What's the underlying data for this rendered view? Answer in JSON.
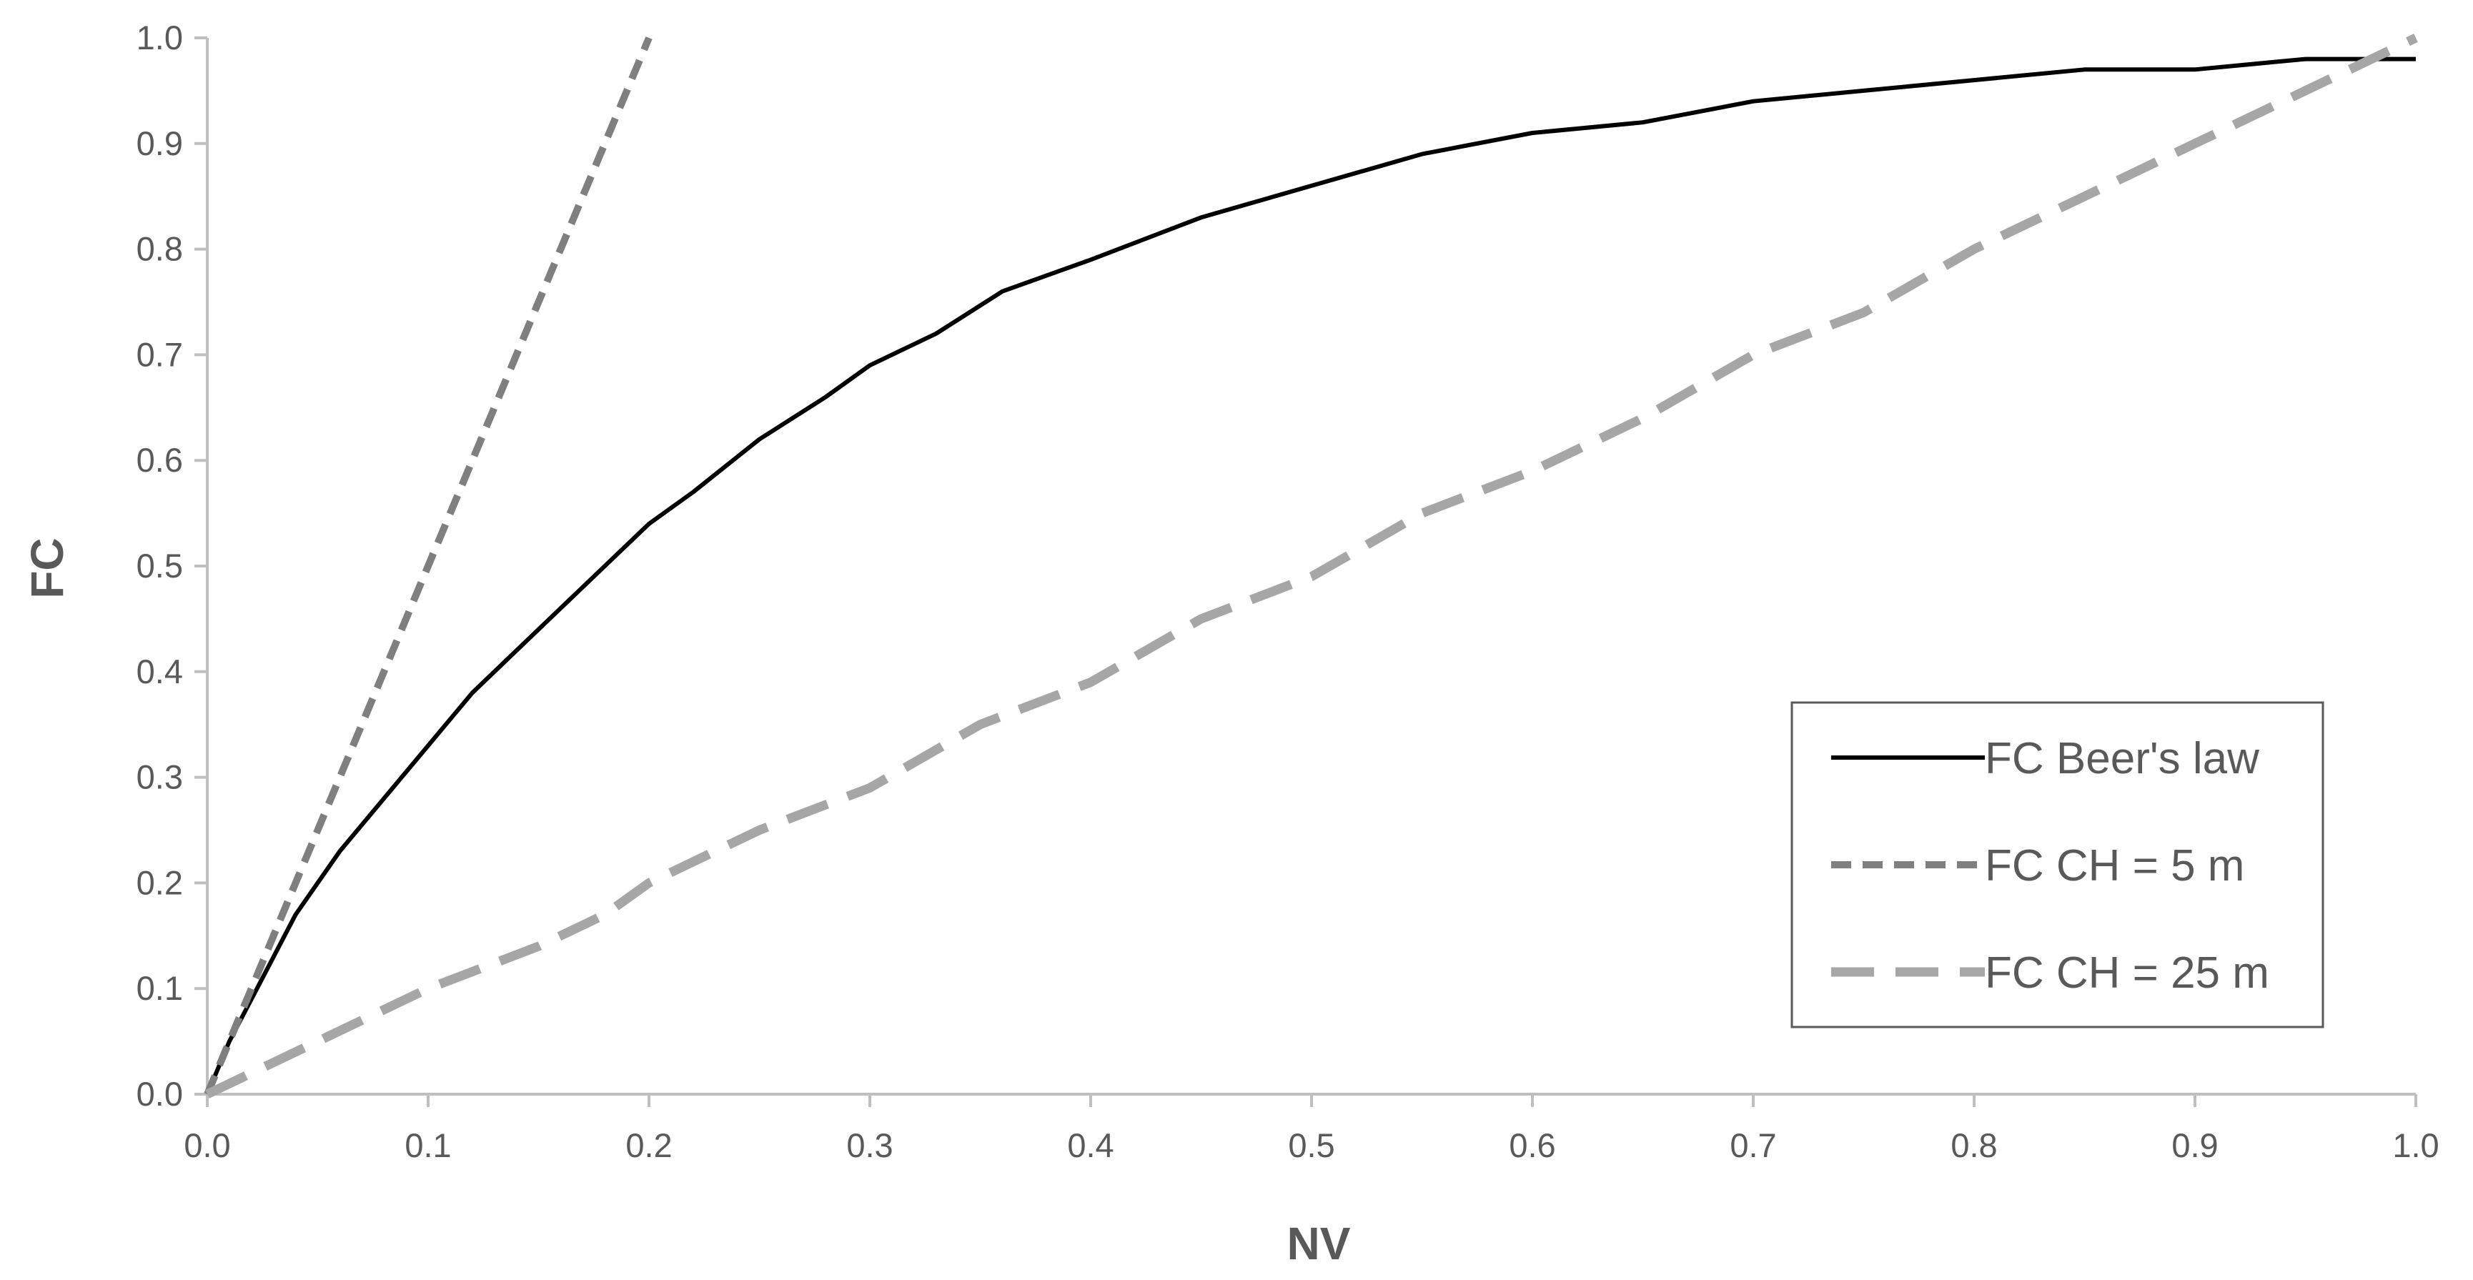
{
  "chart_data": {
    "type": "line",
    "xlabel": "NV",
    "ylabel": "FC",
    "xlim": [
      0.0,
      1.0
    ],
    "ylim": [
      0.0,
      1.0
    ],
    "x_ticks": [
      "0.0",
      "0.1",
      "0.2",
      "0.3",
      "0.4",
      "0.5",
      "0.6",
      "0.7",
      "0.8",
      "0.9",
      "1.0"
    ],
    "y_ticks": [
      "0.0",
      "0.1",
      "0.2",
      "0.3",
      "0.4",
      "0.5",
      "0.6",
      "0.7",
      "0.8",
      "0.9",
      "1.0"
    ],
    "grid": false,
    "legend_position": "bottom-right",
    "axis_color": "#bfbfbf",
    "series": [
      {
        "name": "FC Beer's law",
        "color": "#000000",
        "style": "solid",
        "x": [
          0.0,
          0.01,
          0.02,
          0.03,
          0.04,
          0.05,
          0.06,
          0.08,
          0.1,
          0.12,
          0.14,
          0.16,
          0.18,
          0.2,
          0.22,
          0.25,
          0.28,
          0.3,
          0.33,
          0.36,
          0.4,
          0.45,
          0.5,
          0.55,
          0.6,
          0.65,
          0.7,
          0.75,
          0.8,
          0.85,
          0.9,
          0.95,
          1.0
        ],
        "y": [
          0.0,
          0.05,
          0.09,
          0.13,
          0.17,
          0.2,
          0.23,
          0.28,
          0.33,
          0.38,
          0.42,
          0.46,
          0.5,
          0.54,
          0.57,
          0.62,
          0.66,
          0.69,
          0.72,
          0.76,
          0.79,
          0.83,
          0.86,
          0.89,
          0.91,
          0.92,
          0.94,
          0.95,
          0.96,
          0.97,
          0.97,
          0.98,
          0.98
        ]
      },
      {
        "name": "FC CH = 5 m",
        "color": "#7f7f7f",
        "style": "short-dash",
        "x": [
          0.0,
          0.2
        ],
        "y": [
          0.0,
          1.0
        ]
      },
      {
        "name": "FC CH = 25 m",
        "color": "#a6a6a6",
        "style": "long-dash",
        "x": [
          0.0,
          0.05,
          0.1,
          0.15,
          0.18,
          0.2,
          0.25,
          0.3,
          0.35,
          0.4,
          0.45,
          0.5,
          0.55,
          0.6,
          0.65,
          0.7,
          0.75,
          0.8,
          0.85,
          0.9,
          0.95,
          1.0
        ],
        "y": [
          0.0,
          0.05,
          0.1,
          0.14,
          0.17,
          0.2,
          0.25,
          0.29,
          0.35,
          0.39,
          0.45,
          0.49,
          0.55,
          0.59,
          0.64,
          0.7,
          0.74,
          0.8,
          0.85,
          0.9,
          0.95,
          1.0
        ]
      }
    ]
  }
}
